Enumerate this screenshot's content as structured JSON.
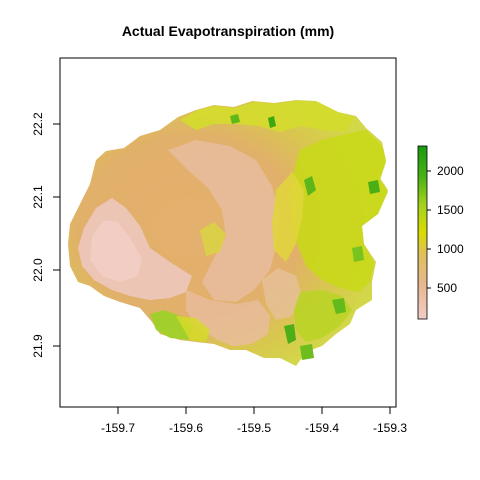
{
  "map": {
    "title": "Actual Evapotranspiration (mm)",
    "x_ticks": [
      "-159.7",
      "-159.6",
      "-159.5",
      "-159.4",
      "-159.3"
    ],
    "y_ticks": [
      "21.9",
      "22.0",
      "22.1",
      "22.2"
    ],
    "legend_ticks": [
      "500",
      "1000",
      "1500",
      "2000"
    ]
  },
  "chart_data": {
    "type": "heatmap",
    "title": "Actual Evapotranspiration (mm)",
    "xlabel": "",
    "ylabel": "",
    "xlim": [
      -159.79,
      -159.295
    ],
    "ylim": [
      21.815,
      22.29
    ],
    "x_ticks": [
      -159.7,
      -159.6,
      -159.5,
      -159.4,
      -159.3
    ],
    "y_ticks": [
      21.9,
      22.0,
      22.1,
      22.2
    ],
    "colorbar": {
      "range": [
        100,
        2300
      ],
      "ticks": [
        500,
        1000,
        1500,
        2000
      ],
      "colors": [
        "#f1c9c0",
        "#e5b86f",
        "#d8d64a",
        "#d8e000",
        "#94cc2a",
        "#3aa415",
        "#1d8f0e"
      ]
    }
  }
}
